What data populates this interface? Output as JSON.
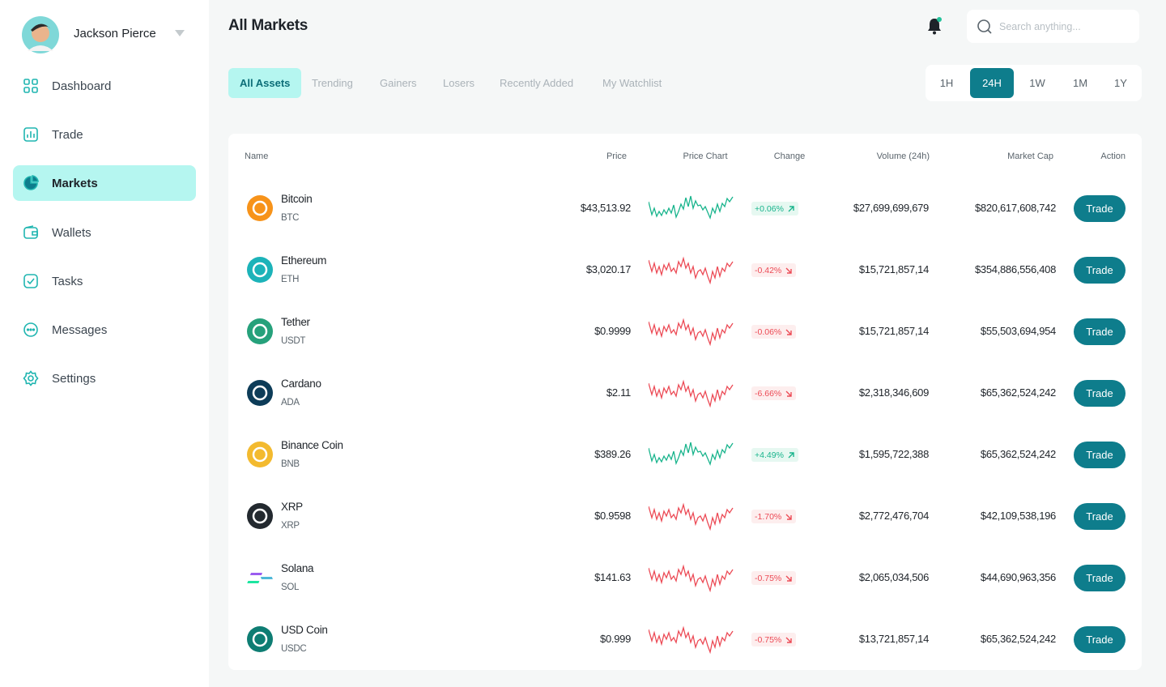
{
  "user": {
    "name": "Jackson Pierce"
  },
  "nav": [
    "Dashboard",
    "Trade",
    "Markets",
    "Wallets",
    "Tasks",
    "Messages",
    "Settings"
  ],
  "header": {
    "title": "All Markets",
    "search_placeholder": "Search anything..."
  },
  "tabs": [
    "All Assets",
    "Trending",
    "Gainers",
    "Losers",
    "Recently Added",
    "My Watchlist"
  ],
  "timeframes": [
    "1H",
    "24H",
    "1W",
    "1M",
    "1Y"
  ],
  "table": {
    "columns": [
      "Name",
      "Price",
      "Price Chart",
      "Change",
      "Volume (24h)",
      "Market Cap",
      "Action"
    ],
    "rows": [
      {
        "name": "Bitcoin",
        "symbol": "BTC",
        "price": "$43,513.92",
        "change": "+0.06%",
        "volume": "$27,699,699,679",
        "market_cap": "$820,617,608,742",
        "action": "Trade"
      },
      {
        "name": "Ethereum",
        "symbol": "ETH",
        "price": "$3,020.17",
        "change": "-0.42%",
        "volume": "$15,721,857,14",
        "market_cap": "$354,886,556,408",
        "action": "Trade"
      },
      {
        "name": "Tether",
        "symbol": "USDT",
        "price": "$0.9999",
        "change": "-0.06%",
        "volume": "$15,721,857,14",
        "market_cap": "$55,503,694,954",
        "action": "Trade"
      },
      {
        "name": "Cardano",
        "symbol": "ADA",
        "price": "$2.11",
        "change": "-6.66%",
        "volume": "$2,318,346,609",
        "market_cap": "$65,362,524,242",
        "action": "Trade"
      },
      {
        "name": "Binance Coin",
        "symbol": "BNB",
        "price": "$389.26",
        "change": "+4.49%",
        "volume": "$1,595,722,388",
        "market_cap": "$65,362,524,242",
        "action": "Trade"
      },
      {
        "name": "XRP",
        "symbol": "XRP",
        "price": "$0.9598",
        "change": "-1.70%",
        "volume": "$2,772,476,704",
        "market_cap": "$42,109,538,196",
        "action": "Trade"
      },
      {
        "name": "Solana",
        "symbol": "SOL",
        "price": "$141.63",
        "change": "-0.75%",
        "volume": "$2,065,034,506",
        "market_cap": "$44,690,963,356",
        "action": "Trade"
      },
      {
        "name": "USD Coin",
        "symbol": "USDC",
        "price": "$0.999",
        "change": "-0.75%",
        "volume": "$13,721,857,14",
        "market_cap": "$65,362,524,242",
        "action": "Trade"
      }
    ]
  }
}
